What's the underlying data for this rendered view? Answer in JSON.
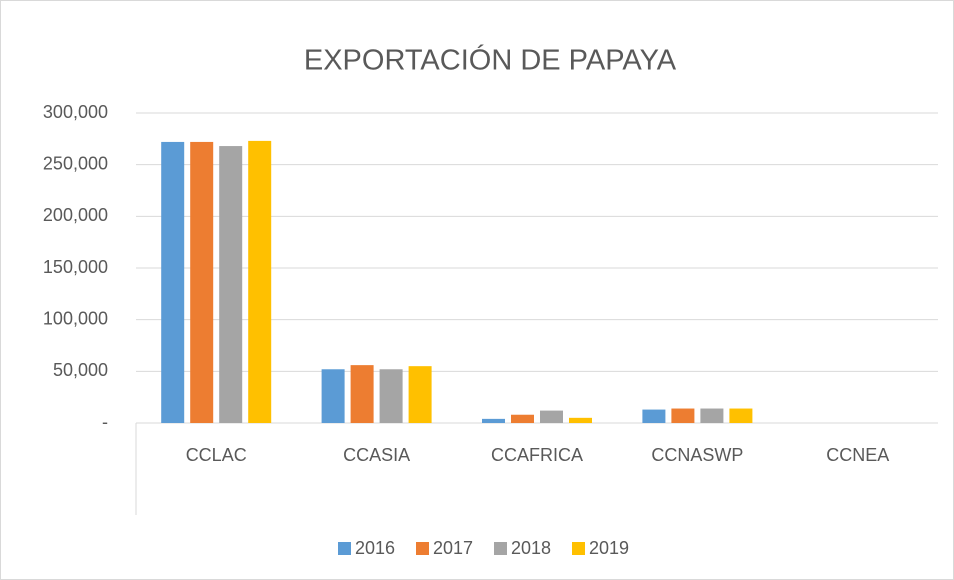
{
  "chart_data": {
    "type": "bar",
    "title": "EXPORTACIÓN DE PAPAYA",
    "categories": [
      "CCLAC",
      "CCASIA",
      "CCAFRICA",
      "CCNASWP",
      "CCNEA"
    ],
    "series": [
      {
        "name": "2016",
        "color": "#5b9bd5",
        "values": [
          272000,
          52000,
          4000,
          13000,
          0
        ]
      },
      {
        "name": "2017",
        "color": "#ed7d31",
        "values": [
          272000,
          56000,
          8000,
          14000,
          0
        ]
      },
      {
        "name": "2018",
        "color": "#a5a5a5",
        "values": [
          268000,
          52000,
          12000,
          14000,
          0
        ]
      },
      {
        "name": "2019",
        "color": "#ffc000",
        "values": [
          273000,
          55000,
          5000,
          14000,
          0
        ]
      }
    ],
    "ylim": [
      0,
      300000
    ],
    "yticks": [
      {
        "value": 0,
        "label": "-"
      },
      {
        "value": 50000,
        "label": "50,000"
      },
      {
        "value": 100000,
        "label": "100,000"
      },
      {
        "value": 150000,
        "label": "150,000"
      },
      {
        "value": 200000,
        "label": "200,000"
      },
      {
        "value": 250000,
        "label": "250,000"
      },
      {
        "value": 300000,
        "label": "300,000"
      }
    ],
    "grid": true,
    "legend": "bottom"
  }
}
